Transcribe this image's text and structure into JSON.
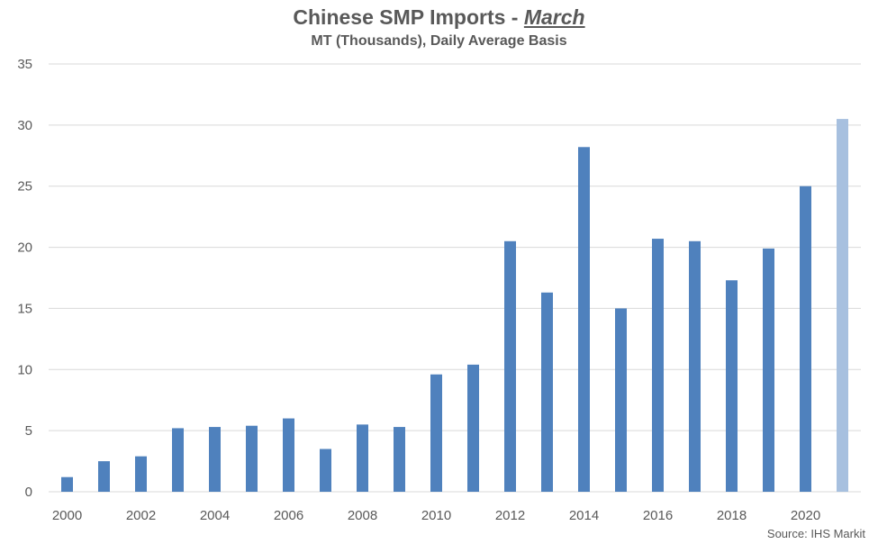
{
  "chart_data": {
    "type": "bar",
    "title": "Chinese SMP Imports - ",
    "title_emphasis": "March",
    "subtitle": "MT (Thousands), Daily Average Basis",
    "xlabel": "",
    "ylabel": "",
    "ylim": [
      0,
      35
    ],
    "yticks": [
      "0",
      "5",
      "10",
      "15",
      "20",
      "25",
      "30",
      "35"
    ],
    "xtick_labels": [
      "2000",
      "2002",
      "2004",
      "2006",
      "2008",
      "2010",
      "2012",
      "2014",
      "2016",
      "2018",
      "2020"
    ],
    "categories": [
      "2000",
      "2001",
      "2002",
      "2003",
      "2004",
      "2005",
      "2006",
      "2007",
      "2008",
      "2009",
      "2010",
      "2011",
      "2012",
      "2013",
      "2014",
      "2015",
      "2016",
      "2017",
      "2018",
      "2019",
      "2020",
      "2021"
    ],
    "values": [
      1.2,
      2.5,
      2.9,
      5.2,
      5.3,
      5.4,
      6.0,
      3.5,
      5.5,
      5.3,
      9.6,
      10.4,
      20.5,
      16.3,
      28.2,
      15.0,
      20.7,
      20.5,
      17.3,
      19.9,
      25.0,
      30.5
    ],
    "grid": true,
    "colors": {
      "bar": "#4f81bd",
      "bar_highlight": "#a7c0df",
      "grid": "#d9d9d9",
      "text": "#595959"
    },
    "highlight_index": 21
  },
  "source": "Source: IHS Markit"
}
